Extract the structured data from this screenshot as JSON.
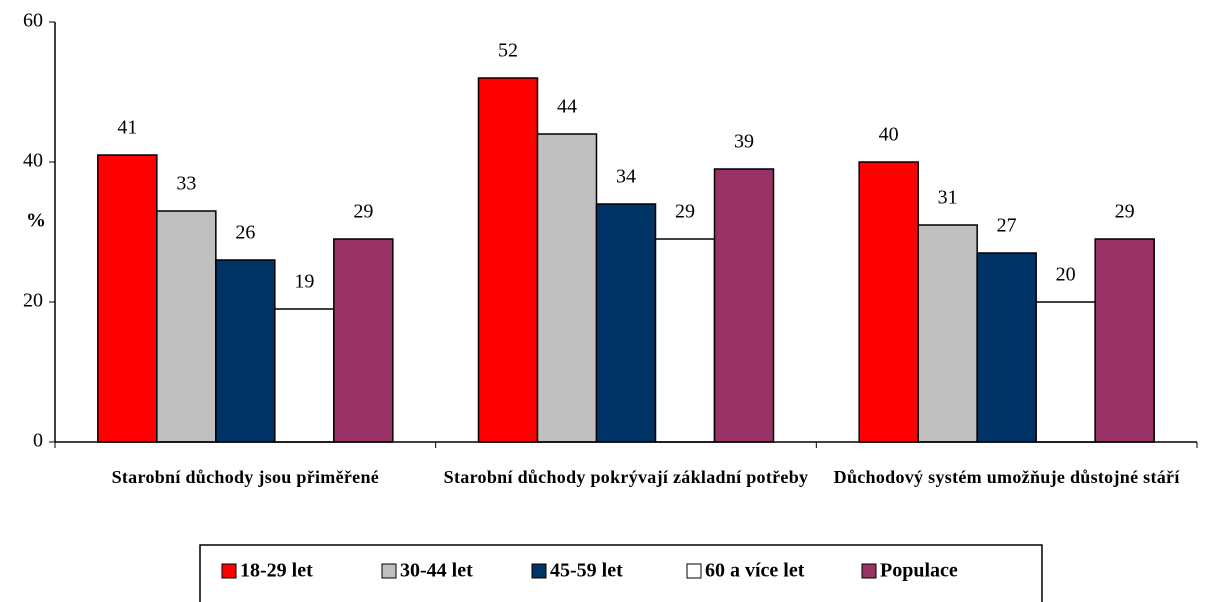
{
  "chart_data": {
    "type": "bar",
    "y_label": "%",
    "categories": [
      "Starobní důchody jsou přiměřené",
      "Starobní důchody pokrývají základní potřeby",
      "Důchodový systém umožňuje důstojné stáří"
    ],
    "series": [
      {
        "name": "18-29 let",
        "color": "#ff0000",
        "values": [
          41,
          52,
          40
        ]
      },
      {
        "name": "30-44 let",
        "color": "#c0c0c0",
        "values": [
          33,
          44,
          31
        ]
      },
      {
        "name": "45-59 let",
        "color": "#003366",
        "values": [
          26,
          34,
          27
        ]
      },
      {
        "name": "60 a více let",
        "color": "#ffffff",
        "values": [
          19,
          29,
          20
        ]
      },
      {
        "name": "Populace",
        "color": "#993366",
        "values": [
          29,
          39,
          29
        ]
      }
    ],
    "ylim": [
      0,
      60
    ],
    "yticks": [
      0,
      20,
      40,
      60
    ],
    "legend": "bottom"
  }
}
